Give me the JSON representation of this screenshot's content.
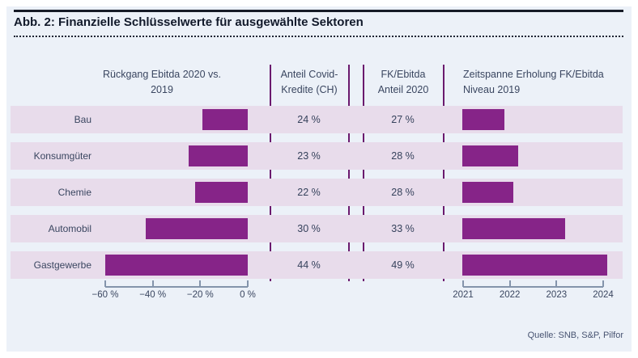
{
  "title": "Abb. 2: Finanzielle Schlüsselwerte für ausgewählte Sektoren",
  "source": "Quelle: SNB, S&P, Pilfor",
  "columns": {
    "c1": "Rückgang Ebitda 2020 vs. 2019",
    "c2": "Anteil Covid-\nKredite (CH)",
    "c3": "FK/Ebitda\nAnteil 2020",
    "c4": "Zeitspanne Erholung FK/Ebitda\nNiveau 2019"
  },
  "chart_data": {
    "type": "bar",
    "title": "Abb. 2: Finanzielle Schlüsselwerte für ausgewählte Sektoren",
    "categories": [
      "Bau",
      "Konsumgüter",
      "Chemie",
      "Automobil",
      "Gastgewerbe"
    ],
    "series": [
      {
        "name": "Rückgang Ebitda 2020 vs. 2019",
        "type": "bar",
        "unit": "%",
        "values": [
          -19,
          -25,
          -22,
          -43,
          -60
        ],
        "xlim": [
          -60,
          0
        ],
        "tick_values": [
          -60,
          -40,
          -20,
          0
        ],
        "tick_labels": [
          "−60 %",
          "−40 %",
          "−20 %",
          "0 %"
        ]
      },
      {
        "name": "Anteil Covid-Kredite (CH)",
        "type": "table",
        "values": [
          24,
          23,
          22,
          30,
          44
        ],
        "display": [
          "24 %",
          "23 %",
          "22 %",
          "30 %",
          "44 %"
        ]
      },
      {
        "name": "FK/Ebitda Anteil 2020",
        "type": "table",
        "values": [
          27,
          28,
          28,
          33,
          49
        ],
        "display": [
          "27 %",
          "28 %",
          "28 %",
          "33 %",
          "49 %"
        ]
      },
      {
        "name": "Zeitspanne Erholung FK/Ebitda Niveau 2019",
        "type": "bar",
        "unit": "Jahr",
        "values": [
          2021.9,
          2022.2,
          2022.1,
          2023.2,
          2024.1
        ],
        "xlim": [
          2021,
          2024
        ],
        "tick_values": [
          2021,
          2022,
          2023,
          2024
        ],
        "tick_labels": [
          "2021",
          "2022",
          "2023",
          "2024"
        ]
      }
    ],
    "colors": {
      "bar": "#862488",
      "row_stripe": "#E8DCEB",
      "separator": "#6B1A6E",
      "panel_bg": "#ECF1F8",
      "axis": "#8494AB"
    },
    "legend": "none",
    "grid": false
  }
}
